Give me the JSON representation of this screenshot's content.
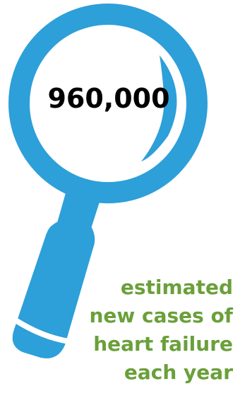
{
  "stat_value": "960,000",
  "caption_lines": [
    "estimated",
    "new cases of",
    "heart failure",
    "each year"
  ],
  "colors": {
    "magnifier": "#2d9fd9",
    "caption": "#6aa03a",
    "stat": "#000000"
  }
}
